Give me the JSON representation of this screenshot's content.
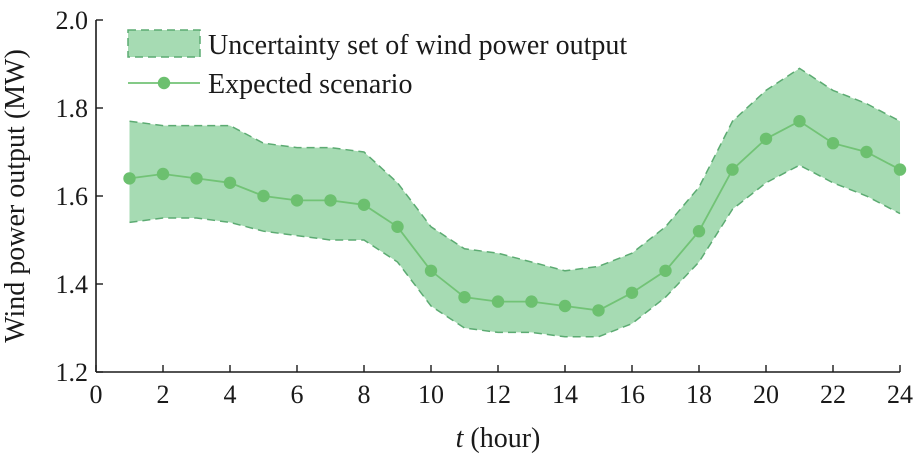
{
  "chart_data": {
    "type": "area",
    "xlabel_italic": "t",
    "xlabel_rest": " (hour)",
    "ylabel": "Wind power output (MW)",
    "xlim": [
      0,
      24
    ],
    "ylim": [
      1.2,
      2.0
    ],
    "x_ticks": [
      "0",
      "2",
      "4",
      "6",
      "8",
      "10",
      "12",
      "14",
      "16",
      "18",
      "20",
      "22",
      "24"
    ],
    "y_ticks": [
      "1.2",
      "1.4",
      "1.6",
      "1.8",
      "2.0"
    ],
    "x": [
      1,
      2,
      3,
      4,
      5,
      6,
      7,
      8,
      9,
      10,
      11,
      12,
      13,
      14,
      15,
      16,
      17,
      18,
      19,
      20,
      21,
      22,
      23,
      24
    ],
    "series": [
      {
        "name": "Uncertainty set of wind power output",
        "kind": "band",
        "upper": [
          1.77,
          1.76,
          1.76,
          1.76,
          1.72,
          1.71,
          1.71,
          1.7,
          1.63,
          1.53,
          1.48,
          1.47,
          1.45,
          1.43,
          1.44,
          1.47,
          1.53,
          1.62,
          1.77,
          1.84,
          1.89,
          1.84,
          1.81,
          1.77
        ],
        "lower": [
          1.54,
          1.55,
          1.55,
          1.54,
          1.52,
          1.51,
          1.5,
          1.5,
          1.45,
          1.35,
          1.3,
          1.29,
          1.29,
          1.28,
          1.28,
          1.31,
          1.37,
          1.45,
          1.57,
          1.63,
          1.67,
          1.63,
          1.6,
          1.56
        ]
      },
      {
        "name": "Expected scenario",
        "kind": "line",
        "values": [
          1.64,
          1.65,
          1.64,
          1.63,
          1.6,
          1.59,
          1.59,
          1.58,
          1.53,
          1.43,
          1.37,
          1.36,
          1.36,
          1.35,
          1.34,
          1.38,
          1.43,
          1.52,
          1.66,
          1.73,
          1.77,
          1.72,
          1.7,
          1.66
        ]
      }
    ],
    "legend": [
      "Uncertainty set of wind power output",
      "Expected scenario"
    ],
    "legend_position": "top-left",
    "grid": false,
    "colors": {
      "band_fill": "#a6dbb3",
      "band_edge": "#5cab72",
      "line": "#72c376",
      "marker": "#6cc06f",
      "axis": "#1a1a1a"
    }
  }
}
